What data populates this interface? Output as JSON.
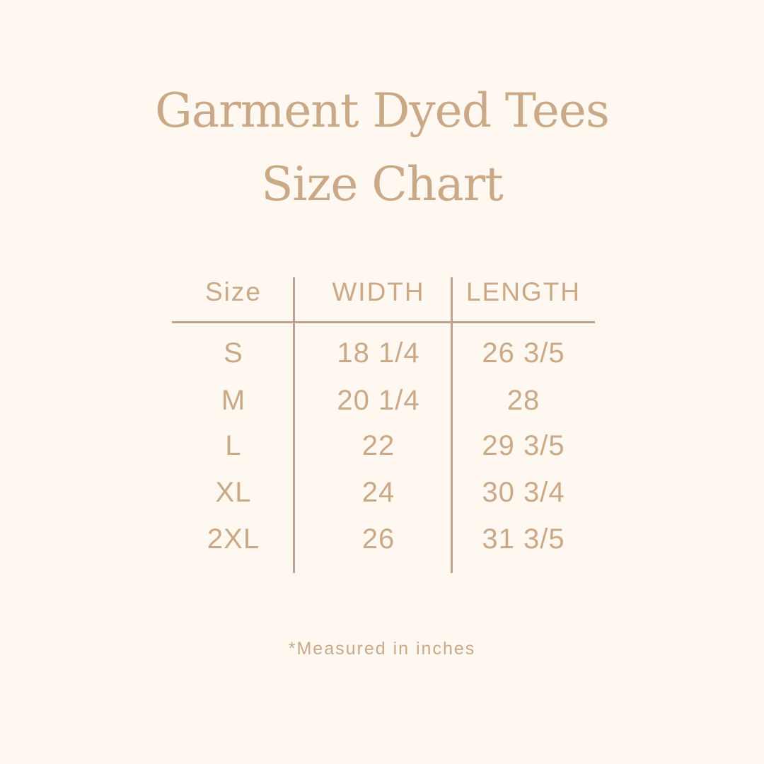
{
  "title": {
    "line1": "Garment Dyed Tees",
    "line2": "Size Chart"
  },
  "table": {
    "headers": [
      "Size",
      "WIDTH",
      "LENGTH"
    ],
    "rows": [
      [
        "S",
        "18 1/4",
        "26 3/5"
      ],
      [
        "M",
        "20 1/4",
        "28"
      ],
      [
        "L",
        "22",
        "29 3/5"
      ],
      [
        "XL",
        "24",
        "30 3/4"
      ],
      [
        "2XL",
        "26",
        "31 3/5"
      ]
    ]
  },
  "note": "*Measured in inches",
  "colors": {
    "background": "#fef8f0",
    "text": "#c9a987",
    "lines": "#bba390"
  }
}
